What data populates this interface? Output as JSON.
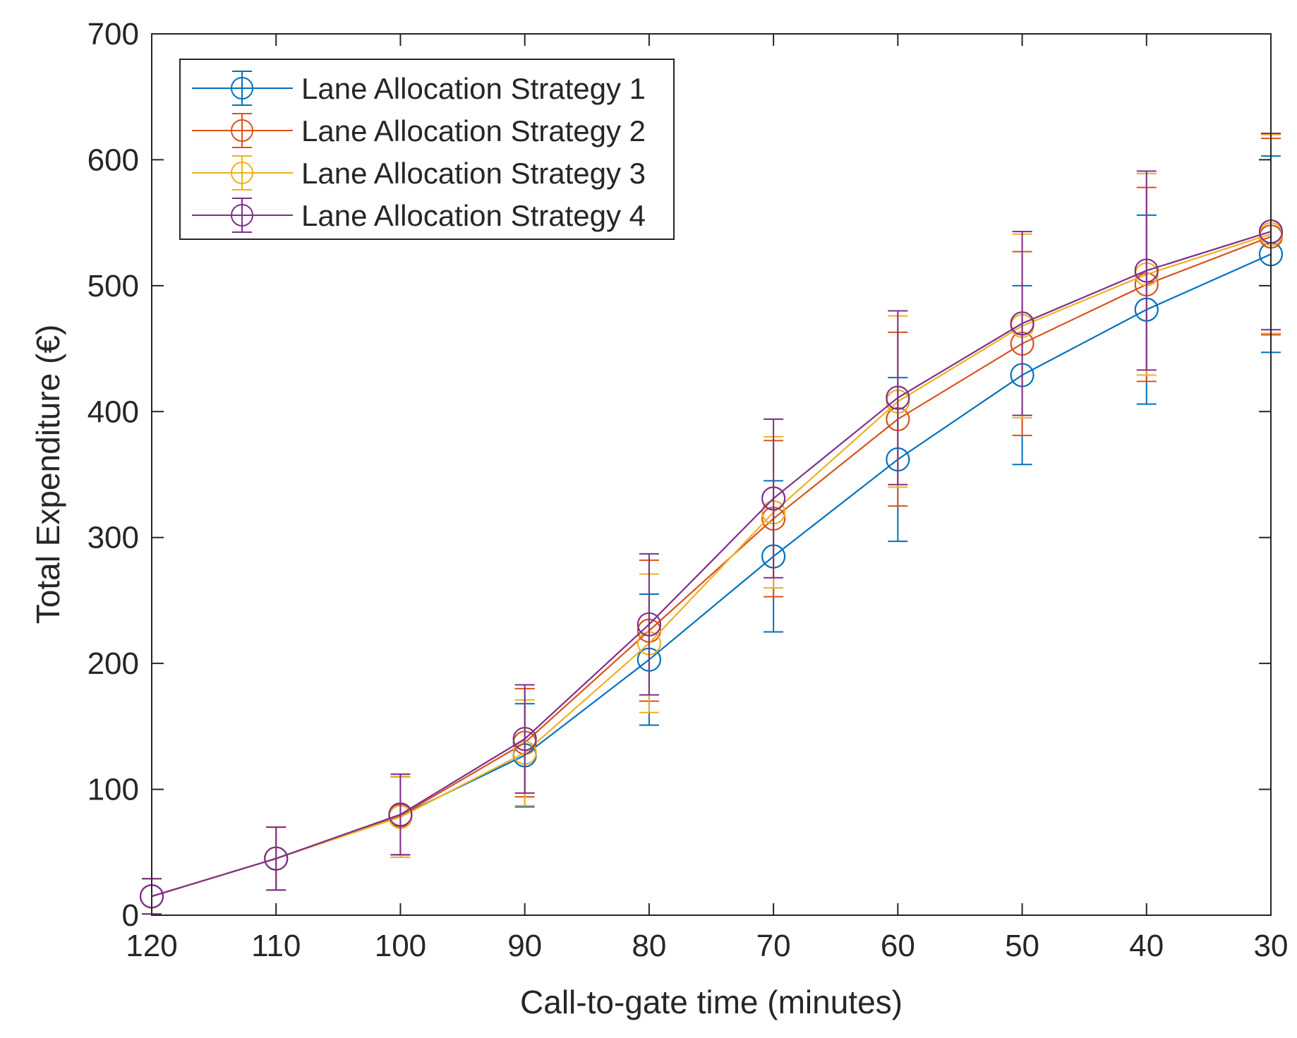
{
  "chart_data": {
    "type": "line",
    "title": "",
    "xlabel": "Call-to-gate time (minutes)",
    "ylabel": "Total Expenditure (€)",
    "x": [
      120,
      110,
      100,
      90,
      80,
      70,
      60,
      50,
      40,
      30
    ],
    "x_tick_labels": [
      "120",
      "110",
      "100",
      "90",
      "80",
      "70",
      "60",
      "50",
      "40",
      "30"
    ],
    "y_tick_labels": [
      "0",
      "100",
      "200",
      "300",
      "400",
      "500",
      "600",
      "700"
    ],
    "y_ticks": [
      0,
      100,
      200,
      300,
      400,
      500,
      600,
      700
    ],
    "xlim": [
      120,
      30
    ],
    "x_reversed": true,
    "ylim": [
      0,
      700
    ],
    "grid": false,
    "legend_position": "top-left",
    "marker": "open-circle",
    "error_bars": true,
    "series": [
      {
        "name": "Lane Allocation Strategy 1",
        "color": "#0072BD",
        "values": [
          15,
          45,
          79,
          127,
          203,
          285,
          362,
          429,
          481,
          525
        ],
        "error": [
          14,
          25,
          31,
          41,
          52,
          60,
          65,
          71,
          75,
          78
        ]
      },
      {
        "name": "Lane Allocation Strategy 2",
        "color": "#D95319",
        "values": [
          15,
          45,
          79,
          137,
          226,
          315,
          394,
          454,
          501,
          539
        ],
        "error": [
          14,
          25,
          31,
          43,
          56,
          62,
          69,
          73,
          77,
          78
        ]
      },
      {
        "name": "Lane Allocation Strategy 3",
        "color": "#EDB120",
        "values": [
          15,
          45,
          78,
          129,
          216,
          320,
          408,
          468,
          509,
          541
        ],
        "error": [
          14,
          25,
          32,
          42,
          55,
          60,
          68,
          73,
          80,
          79
        ]
      },
      {
        "name": "Lane Allocation Strategy 4",
        "color": "#7E2F8E",
        "values": [
          15,
          45,
          80,
          140,
          231,
          331,
          411,
          470,
          512,
          543
        ],
        "error": [
          14,
          25,
          32,
          43,
          56,
          63,
          69,
          73,
          79,
          78
        ]
      }
    ]
  }
}
